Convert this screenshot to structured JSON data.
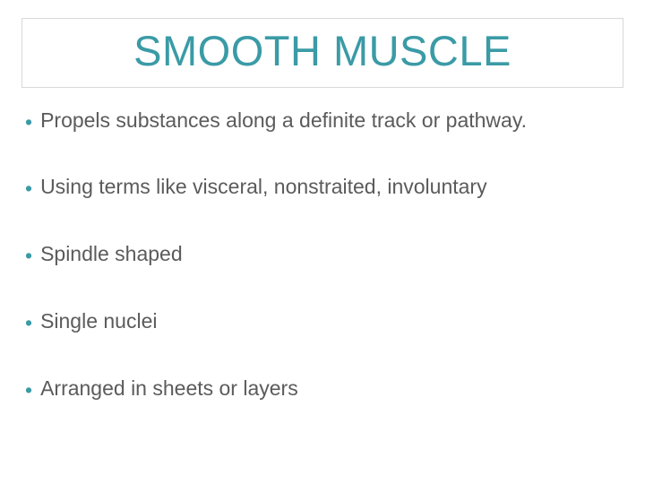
{
  "colors": {
    "title": "#3a9ba6",
    "bullet_dot": "#3a9ba6",
    "body_text": "#5b5b5b",
    "title_border": "#d9d9d9",
    "background": "#ffffff"
  },
  "typography": {
    "title_fontsize": 47,
    "body_fontsize": 23,
    "font_family": "Arial"
  },
  "title": "SMOOTH MUSCLE",
  "bullets": [
    "Propels substances along a definite track or pathway.",
    "Using terms like visceral, nonstraited, involuntary",
    "Spindle shaped",
    "Single nuclei",
    "Arranged in sheets or layers"
  ]
}
